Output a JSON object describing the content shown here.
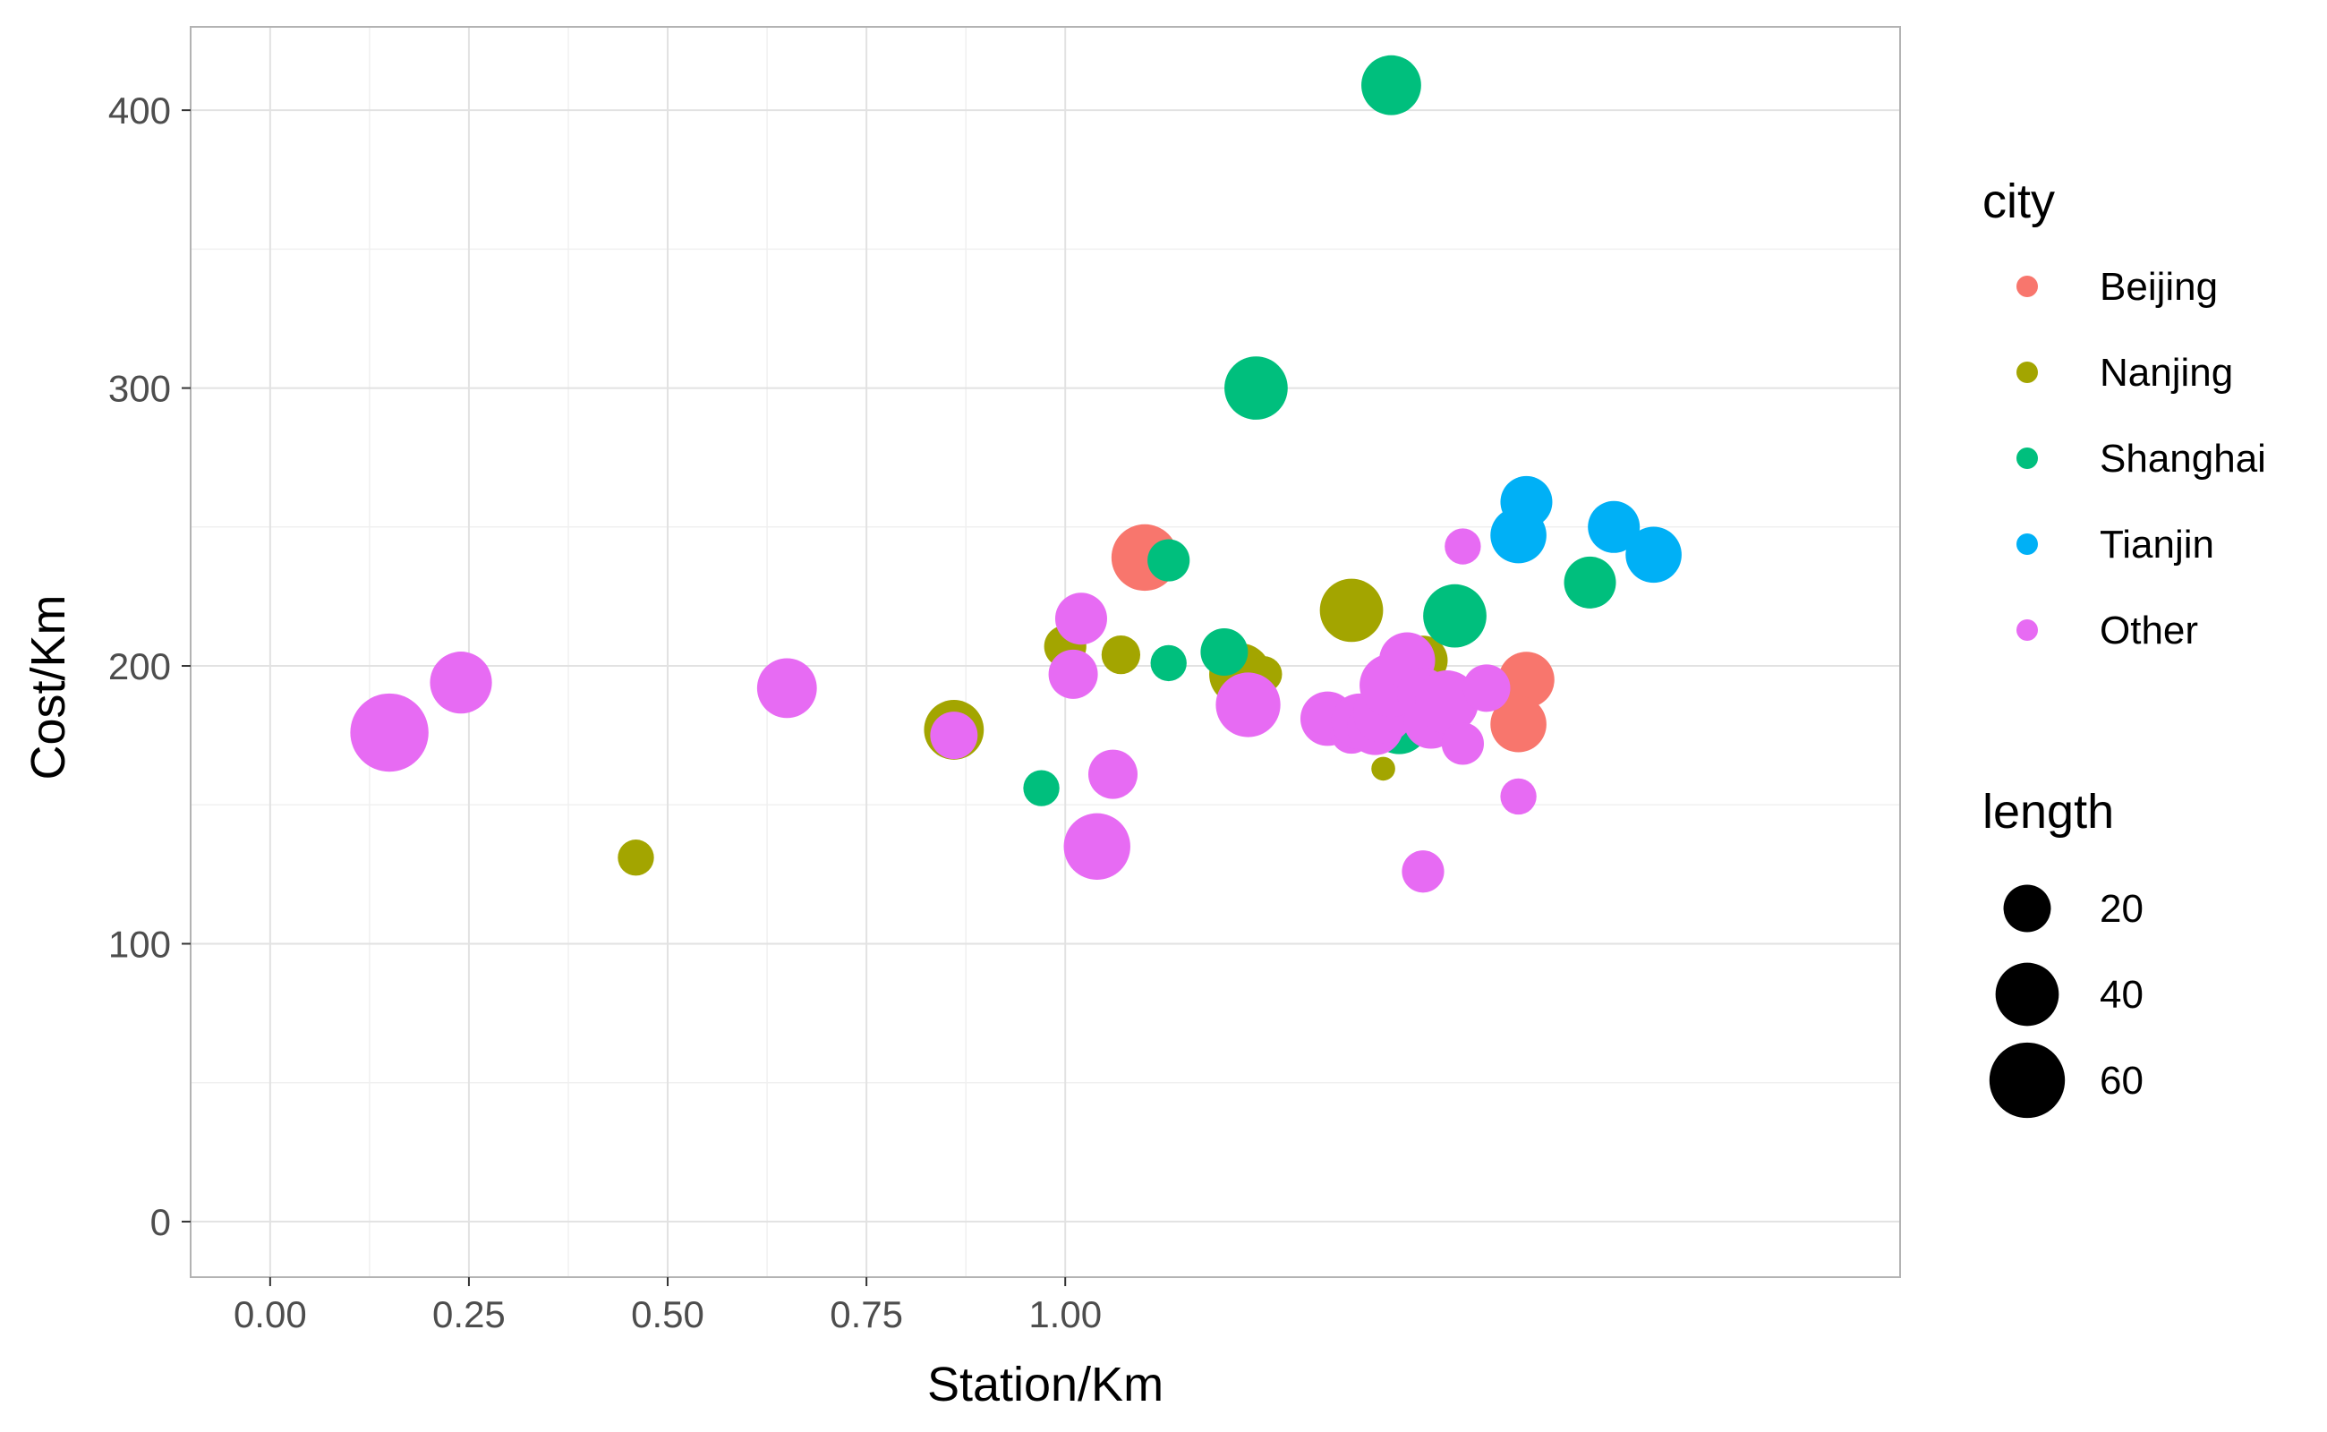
{
  "chart_data": {
    "type": "scatter",
    "xlabel": "Station/Km",
    "ylabel": "Cost/Km",
    "xlim": [
      -0.1,
      2.05
    ],
    "ylim": [
      -20,
      430
    ],
    "x_ticks": [
      0.0,
      0.25,
      0.5,
      0.75,
      1.0
    ],
    "x_tick_labels": [
      "0.00",
      "0.25",
      "0.50",
      "0.75",
      "1.00"
    ],
    "y_ticks": [
      0,
      100,
      200,
      300,
      400
    ],
    "y_tick_labels": [
      "0",
      "100",
      "200",
      "300",
      "400"
    ],
    "grid": true,
    "legend_position": "right",
    "color_legend": {
      "title": "city",
      "entries": [
        {
          "name": "Beijing",
          "color": "#F8766D"
        },
        {
          "name": "Nanjing",
          "color": "#A3A500"
        },
        {
          "name": "Shanghai",
          "color": "#00BF7D"
        },
        {
          "name": "Tianjin",
          "color": "#00B0F6"
        },
        {
          "name": "Other",
          "color": "#E76BF3"
        }
      ]
    },
    "size_legend": {
      "title": "length",
      "values": [
        20,
        40,
        60
      ],
      "labels": [
        "20",
        "40",
        "60"
      ]
    },
    "series": [
      {
        "name": "Beijing",
        "color": "#F8766D",
        "points": [
          {
            "x": 1.1,
            "y": 239,
            "length": 45
          },
          {
            "x": 1.58,
            "y": 195,
            "length": 30
          },
          {
            "x": 1.57,
            "y": 179,
            "length": 30
          }
        ]
      },
      {
        "name": "Nanjing",
        "color": "#A3A500",
        "points": [
          {
            "x": 0.46,
            "y": 131,
            "length": 10
          },
          {
            "x": 0.86,
            "y": 177,
            "length": 35
          },
          {
            "x": 1.0,
            "y": 207,
            "length": 15
          },
          {
            "x": 1.07,
            "y": 204,
            "length": 12
          },
          {
            "x": 1.22,
            "y": 197,
            "length": 38
          },
          {
            "x": 1.25,
            "y": 197,
            "length": 10
          },
          {
            "x": 1.36,
            "y": 220,
            "length": 40
          },
          {
            "x": 1.45,
            "y": 202,
            "length": 22
          },
          {
            "x": 1.4,
            "y": 163,
            "length": 3
          }
        ]
      },
      {
        "name": "Shanghai",
        "color": "#00BF7D",
        "points": [
          {
            "x": 1.41,
            "y": 409,
            "length": 35
          },
          {
            "x": 1.24,
            "y": 300,
            "length": 40
          },
          {
            "x": 1.13,
            "y": 238,
            "length": 15
          },
          {
            "x": 1.13,
            "y": 201,
            "length": 10
          },
          {
            "x": 0.97,
            "y": 156,
            "length": 10
          },
          {
            "x": 1.2,
            "y": 205,
            "length": 20
          },
          {
            "x": 1.49,
            "y": 218,
            "length": 40
          },
          {
            "x": 1.66,
            "y": 230,
            "length": 25
          },
          {
            "x": 1.42,
            "y": 179,
            "length": 35
          }
        ]
      },
      {
        "name": "Tianjin",
        "color": "#00B0F6",
        "points": [
          {
            "x": 1.58,
            "y": 259,
            "length": 25
          },
          {
            "x": 1.57,
            "y": 247,
            "length": 30
          },
          {
            "x": 1.69,
            "y": 250,
            "length": 25
          },
          {
            "x": 1.74,
            "y": 240,
            "length": 30
          }
        ]
      },
      {
        "name": "Other",
        "color": "#E76BF3",
        "points": [
          {
            "x": 0.15,
            "y": 176,
            "length": 65
          },
          {
            "x": 0.24,
            "y": 194,
            "length": 38
          },
          {
            "x": 0.65,
            "y": 192,
            "length": 35
          },
          {
            "x": 0.86,
            "y": 175,
            "length": 20
          },
          {
            "x": 1.02,
            "y": 217,
            "length": 25
          },
          {
            "x": 1.01,
            "y": 197,
            "length": 22
          },
          {
            "x": 1.06,
            "y": 161,
            "length": 22
          },
          {
            "x": 1.04,
            "y": 135,
            "length": 45
          },
          {
            "x": 1.23,
            "y": 186,
            "length": 42
          },
          {
            "x": 1.33,
            "y": 181,
            "length": 28
          },
          {
            "x": 1.36,
            "y": 176,
            "length": 15
          },
          {
            "x": 1.37,
            "y": 180,
            "length": 30
          },
          {
            "x": 1.39,
            "y": 178,
            "length": 30
          },
          {
            "x": 1.4,
            "y": 183,
            "length": 35
          },
          {
            "x": 1.41,
            "y": 193,
            "length": 40
          },
          {
            "x": 1.43,
            "y": 202,
            "length": 30
          },
          {
            "x": 1.45,
            "y": 126,
            "length": 15
          },
          {
            "x": 1.45,
            "y": 190,
            "length": 25
          },
          {
            "x": 1.46,
            "y": 180,
            "length": 28
          },
          {
            "x": 1.48,
            "y": 187,
            "length": 40
          },
          {
            "x": 1.5,
            "y": 243,
            "length": 10
          },
          {
            "x": 1.5,
            "y": 172,
            "length": 15
          },
          {
            "x": 1.53,
            "y": 192,
            "length": 20
          },
          {
            "x": 1.57,
            "y": 153,
            "length": 10
          }
        ]
      }
    ]
  }
}
